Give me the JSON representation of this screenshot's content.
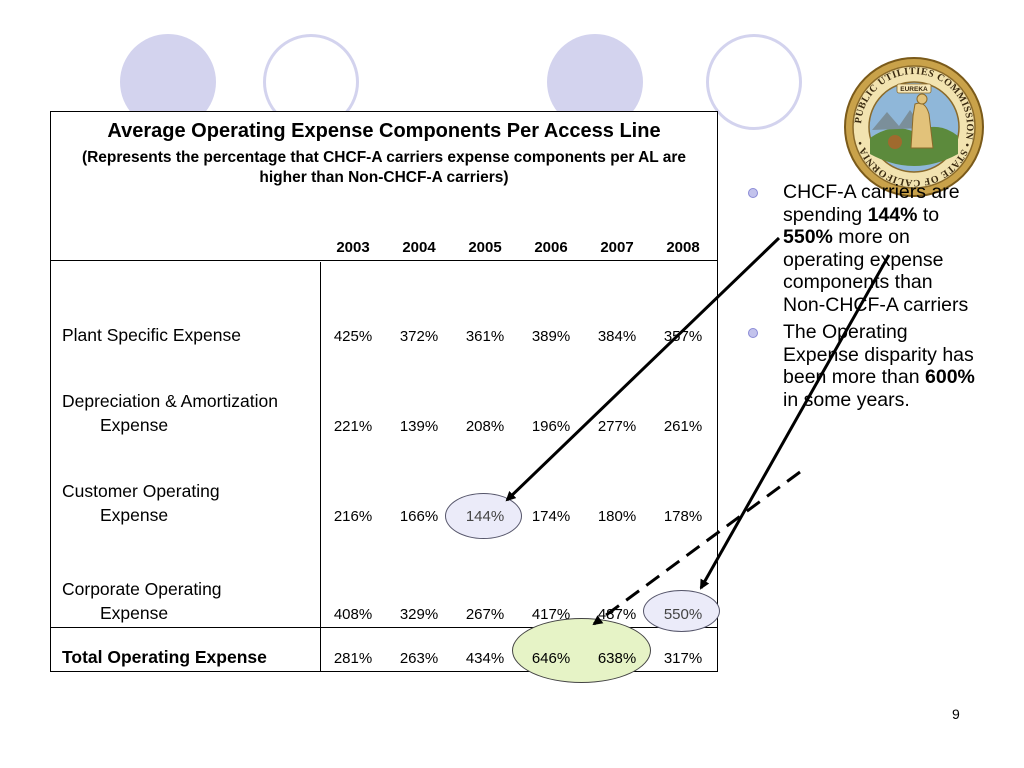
{
  "table": {
    "title": "Average Operating Expense Components Per Access Line",
    "subtitle": "(Represents the percentage that CHCF-A carriers expense components per AL are higher than Non-CHCF-A carriers)",
    "years": [
      "2003",
      "2004",
      "2005",
      "2006",
      "2007",
      "2008"
    ],
    "rows": [
      {
        "label_line1": "Plant Specific Expense",
        "label_line2": "",
        "values": [
          "425%",
          "372%",
          "361%",
          "389%",
          "384%",
          "357%"
        ]
      },
      {
        "label_line1": "Depreciation & Amortization",
        "label_line2": "Expense",
        "values": [
          "221%",
          "139%",
          "208%",
          "196%",
          "277%",
          "261%"
        ]
      },
      {
        "label_line1": "Customer Operating",
        "label_line2": "Expense",
        "values": [
          "216%",
          "166%",
          "144%",
          "174%",
          "180%",
          "178%"
        ]
      },
      {
        "label_line1": "Corporate Operating",
        "label_line2": "Expense",
        "values": [
          "408%",
          "329%",
          "267%",
          "417%",
          "487%",
          "550%"
        ]
      }
    ],
    "total": {
      "label": "Total Operating Expense",
      "values": [
        "281%",
        "263%",
        "434%",
        "646%",
        "638%",
        "317%"
      ]
    }
  },
  "bullets": {
    "b1": {
      "t1": "CHCF-A carriers are spending ",
      "b1": "144%",
      "t2": " to  ",
      "b2": "550%",
      "t3": " more on operating expense components than Non-CHCF-A carriers"
    },
    "b2": {
      "t1": "The Operating Expense disparity has been more than ",
      "b1": "600%",
      "t2": " in some years."
    }
  },
  "seal": {
    "ring_text": "PUBLIC UTILITIES COMMISSION • STATE OF CALIFORNIA •",
    "banner": "EUREKA"
  },
  "page_number": "9",
  "colors": {
    "circle_fill": "#d3d3ee",
    "highlight_blue": "#ebebf9",
    "highlight_green": "#e6f3c6",
    "bullet": "#c3c3ec"
  }
}
